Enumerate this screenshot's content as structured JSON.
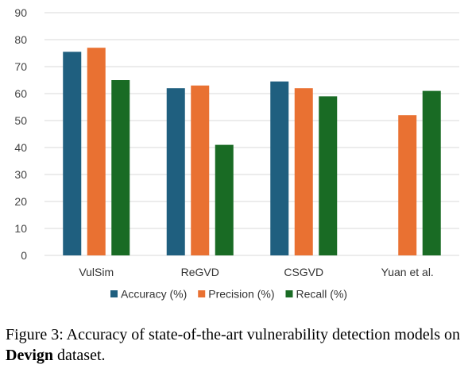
{
  "chart_data": {
    "type": "bar",
    "categories": [
      "VulSim",
      "ReGVD",
      "CSGVD",
      "Yuan et al."
    ],
    "series": [
      {
        "name": "Accuracy (%)",
        "color": "#1f5f7f",
        "values": [
          75.5,
          62,
          64.5,
          null
        ]
      },
      {
        "name": "Precision (%)",
        "color": "#e97132",
        "values": [
          77,
          63,
          62,
          52
        ]
      },
      {
        "name": "Recall (%)",
        "color": "#196b24",
        "values": [
          65,
          41,
          59,
          61
        ]
      }
    ],
    "ylim": [
      0,
      90
    ],
    "yticks": [
      "0",
      "10",
      "20",
      "30",
      "40",
      "50",
      "60",
      "70",
      "80",
      "90"
    ],
    "grid": true,
    "legend_position": "bottom"
  },
  "caption": {
    "prefix": "Figure 3: Accuracy of state-of-the-art vulnerability detection models on ",
    "bold": "Devign",
    "suffix": " dataset."
  }
}
